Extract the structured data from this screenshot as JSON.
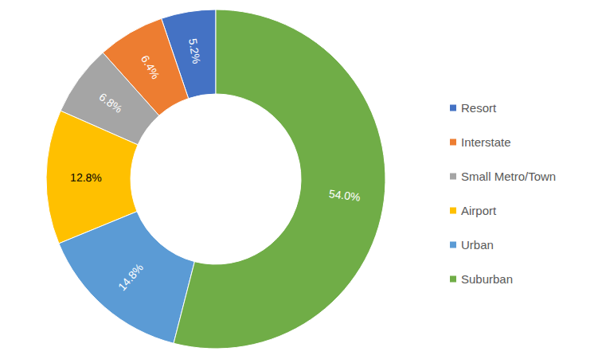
{
  "chart_data": {
    "type": "pie",
    "categories": [
      "Resort",
      "Interstate",
      "Small Metro/Town",
      "Airport",
      "Urban",
      "Suburban"
    ],
    "values": [
      5.2,
      6.4,
      6.8,
      12.8,
      14.8,
      54.0
    ],
    "value_labels": [
      "5.2%",
      "6.4%",
      "6.8%",
      "12.8%",
      "14.8%",
      "54.0%"
    ],
    "colors": [
      "#4472c4",
      "#ed7d31",
      "#a5a5a5",
      "#ffc000",
      "#5b9bd5",
      "#70ad47"
    ],
    "data_labels": true,
    "legend": "right"
  }
}
